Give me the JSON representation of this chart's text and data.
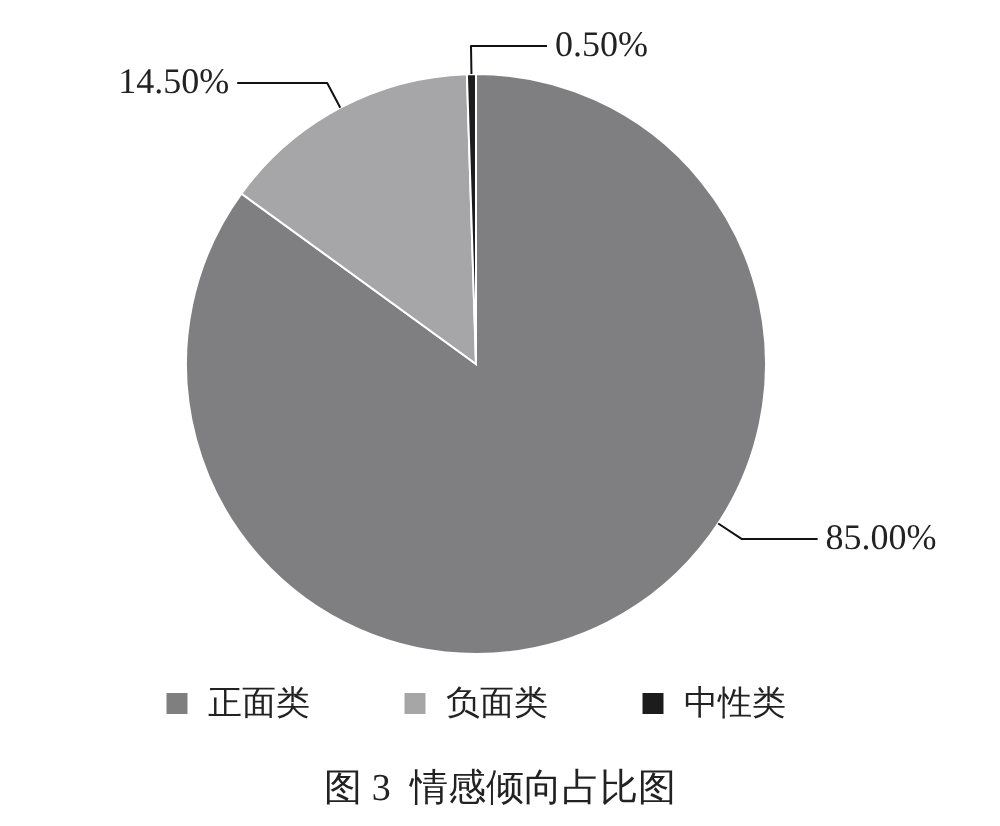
{
  "chart_data": {
    "type": "pie",
    "title": "图 3  情感倾向占比图",
    "categories": [
      "正面类",
      "负面类",
      "中性类"
    ],
    "values": [
      85,
      14.5,
      0.5
    ],
    "colors": [
      "#7f7f82",
      "#a6a6a8",
      "#1c1c1c"
    ],
    "value_labels": [
      "85.00%",
      "14.50%",
      "0.50%"
    ],
    "legend": "bottom"
  }
}
